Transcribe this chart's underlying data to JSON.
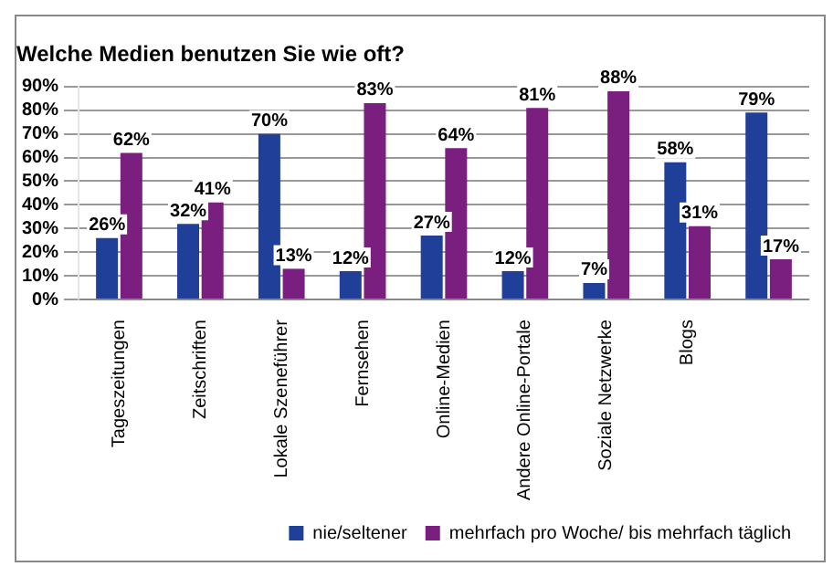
{
  "chart_data": {
    "type": "bar",
    "title": "Welche Medien benutzen Sie wie oft?",
    "categories": [
      "Tageszeitungen",
      "Zeitschriften",
      "Lokale Szeneführer",
      "Fernsehen",
      "Online-Medien",
      "Andere Online-Portale",
      "Soziale Netzwerke",
      "Blogs",
      null
    ],
    "series": [
      {
        "name": "nie/seltener",
        "color": "#1f3f99",
        "values": [
          26,
          32,
          70,
          12,
          27,
          12,
          7,
          58,
          79
        ],
        "value_labels": [
          "26%",
          "32%",
          "70%",
          "12%",
          "27%",
          "12%",
          "7%",
          "58%",
          "79%"
        ]
      },
      {
        "name": "mehrfach pro Woche/ bis mehrfach täglich",
        "color": "#7a1f7f",
        "values": [
          62,
          41,
          13,
          83,
          64,
          81,
          88,
          31,
          17
        ],
        "value_labels": [
          "62%",
          "41%",
          "13%",
          "83%",
          "64%",
          "81%",
          "88%",
          "31%",
          "17%"
        ]
      }
    ],
    "ylim": [
      0,
      90
    ],
    "yticks": [
      {
        "value": 0,
        "label": "0%"
      },
      {
        "value": 10,
        "label": "10%"
      },
      {
        "value": 20,
        "label": "20%"
      },
      {
        "value": 30,
        "label": "30%"
      },
      {
        "value": 40,
        "label": "40%"
      },
      {
        "value": 50,
        "label": "50%"
      },
      {
        "value": 60,
        "label": "60%"
      },
      {
        "value": 70,
        "label": "70%"
      },
      {
        "value": 80,
        "label": "80%"
      },
      {
        "value": 90,
        "label": "90%"
      }
    ],
    "grid": "y",
    "legend": "bottom"
  }
}
